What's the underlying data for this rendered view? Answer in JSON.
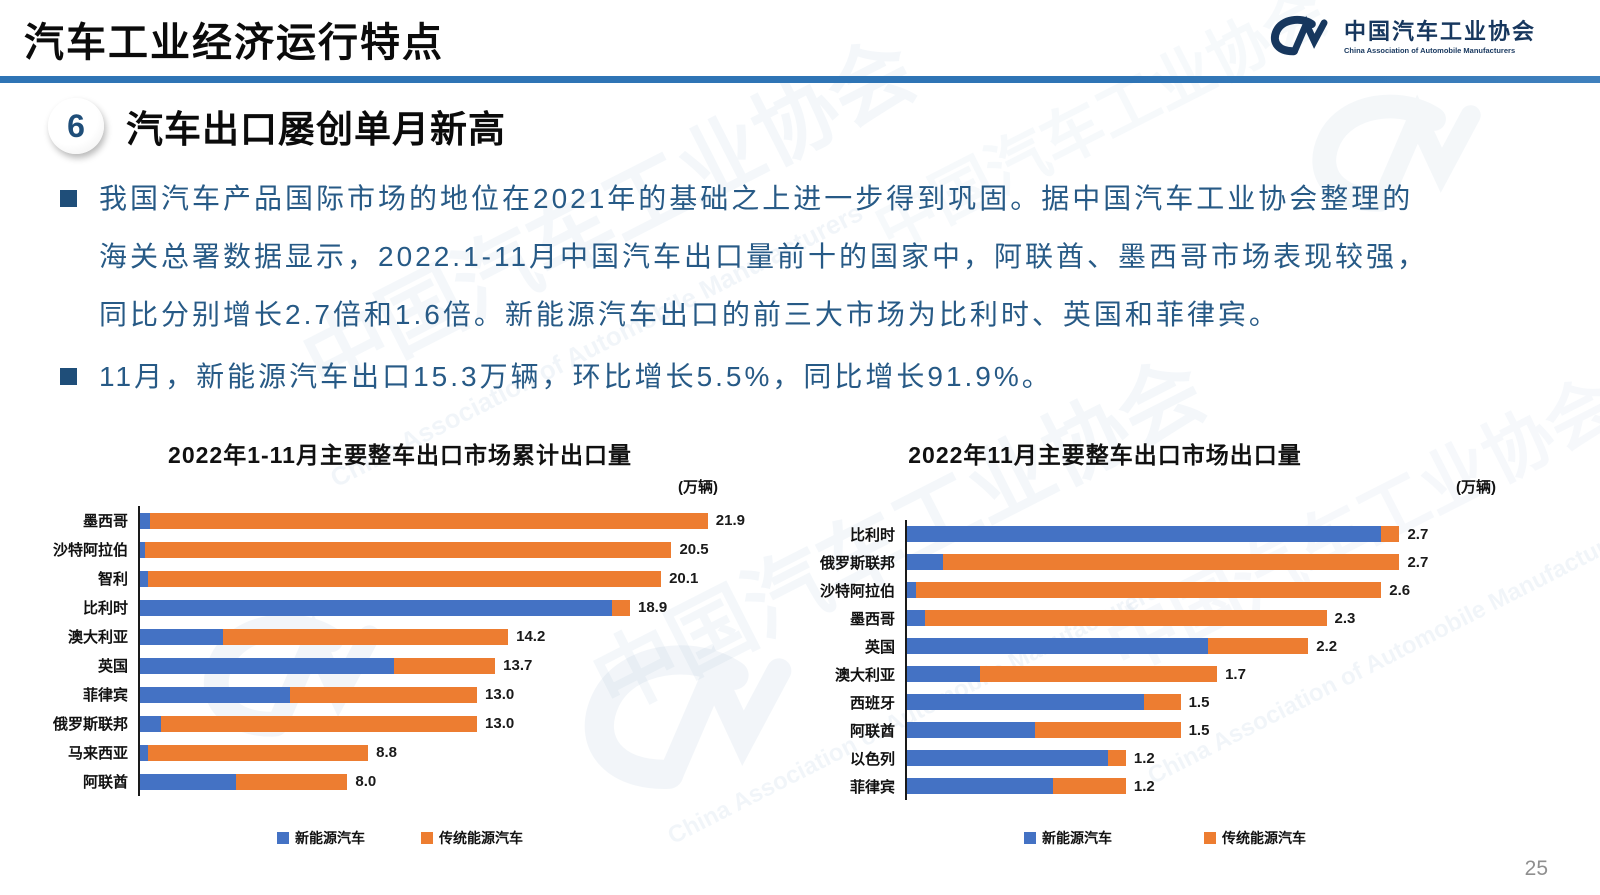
{
  "header": {
    "title": "汽车工业经济运行特点",
    "logo": {
      "cn": "中国汽车工业协会",
      "en": "China Association of Automobile Manufacturers"
    }
  },
  "section": {
    "number": "6",
    "heading": "汽车出口屡创单月新高"
  },
  "bullets": [
    {
      "text": "我国汽车产品国际市场的地位在2021年的基础之上进一步得到巩固。据中国汽车工业协会整理的海关总署数据显示，2022.1-11月中国汽车出口量前十的国家中，阿联酋、墨西哥市场表现较强，同比分别增长2.7倍和1.6倍。新能源汽车出口的前三大市场为比利时、英国和菲律宾。"
    },
    {
      "text": "11月，新能源汽车出口15.3万辆，环比增长5.5%，同比增长91.9%。"
    }
  ],
  "colors": {
    "nev_blue": "#4472C4",
    "ice_orange": "#ED7D31",
    "text_blue": "#275A86",
    "underline_blue": "#2E74B5",
    "logo_navy": "#17375E"
  },
  "watermark": {
    "cn": "中国汽车工业协会",
    "en": "China Association of Automobile Manufacturers"
  },
  "chart_data": [
    {
      "type": "bar",
      "orientation": "horizontal",
      "stacked": true,
      "title": "2022年1-11月主要整车出口市场累计出口量",
      "unit_label": "(万辆)",
      "categories": [
        "墨西哥",
        "沙特阿拉伯",
        "智利",
        "比利时",
        "澳大利亚",
        "英国",
        "菲律宾",
        "俄罗斯联邦",
        "马来西亚",
        "阿联酋"
      ],
      "series": [
        {
          "name": "新能源汽车",
          "color": "#4472C4",
          "values": [
            0.4,
            0.2,
            0.3,
            18.2,
            3.2,
            9.8,
            5.8,
            0.8,
            0.3,
            3.7
          ]
        },
        {
          "name": "传统能源汽车",
          "color": "#ED7D31",
          "values": [
            21.5,
            20.3,
            19.8,
            0.7,
            11.0,
            3.9,
            7.2,
            12.2,
            8.5,
            4.3
          ]
        }
      ],
      "totals": [
        21.9,
        20.5,
        20.1,
        18.9,
        14.2,
        13.7,
        13.0,
        13.0,
        8.8,
        8.0
      ],
      "total_labels": [
        "21.9",
        "20.5",
        "20.1",
        "18.9",
        "14.2",
        "13.7",
        "13.0",
        "13.0",
        "8.8",
        "8.0"
      ],
      "xmax": 24.3,
      "grid": false,
      "legend_position": "bottom",
      "legend": [
        "新能源汽车",
        "传统能源汽车"
      ]
    },
    {
      "type": "bar",
      "orientation": "horizontal",
      "stacked": true,
      "title": "2022年11月主要整车出口市场出口量",
      "unit_label": "(万辆)",
      "categories": [
        "比利时",
        "俄罗斯联邦",
        "沙特阿拉伯",
        "墨西哥",
        "英国",
        "澳大利亚",
        "西班牙",
        "阿联酋",
        "以色列",
        "菲律宾"
      ],
      "series": [
        {
          "name": "新能源汽车",
          "color": "#4472C4",
          "values": [
            2.6,
            0.2,
            0.05,
            0.1,
            1.65,
            0.4,
            1.3,
            0.7,
            1.1,
            0.8
          ]
        },
        {
          "name": "传统能源汽车",
          "color": "#ED7D31",
          "values": [
            0.1,
            2.5,
            2.55,
            2.2,
            0.55,
            1.3,
            0.2,
            0.8,
            0.1,
            0.4
          ]
        }
      ],
      "totals": [
        2.7,
        2.7,
        2.6,
        2.3,
        2.2,
        1.7,
        1.5,
        1.5,
        1.2,
        1.2
      ],
      "total_labels": [
        "2.7",
        "2.7",
        "2.6",
        "2.3",
        "2.2",
        "1.7",
        "1.5",
        "1.5",
        "1.2",
        "1.2"
      ],
      "xmax": 3.58,
      "grid": false,
      "legend_position": "bottom",
      "legend": [
        "新能源汽车",
        "传统能源汽车"
      ]
    }
  ],
  "page_number": "25"
}
